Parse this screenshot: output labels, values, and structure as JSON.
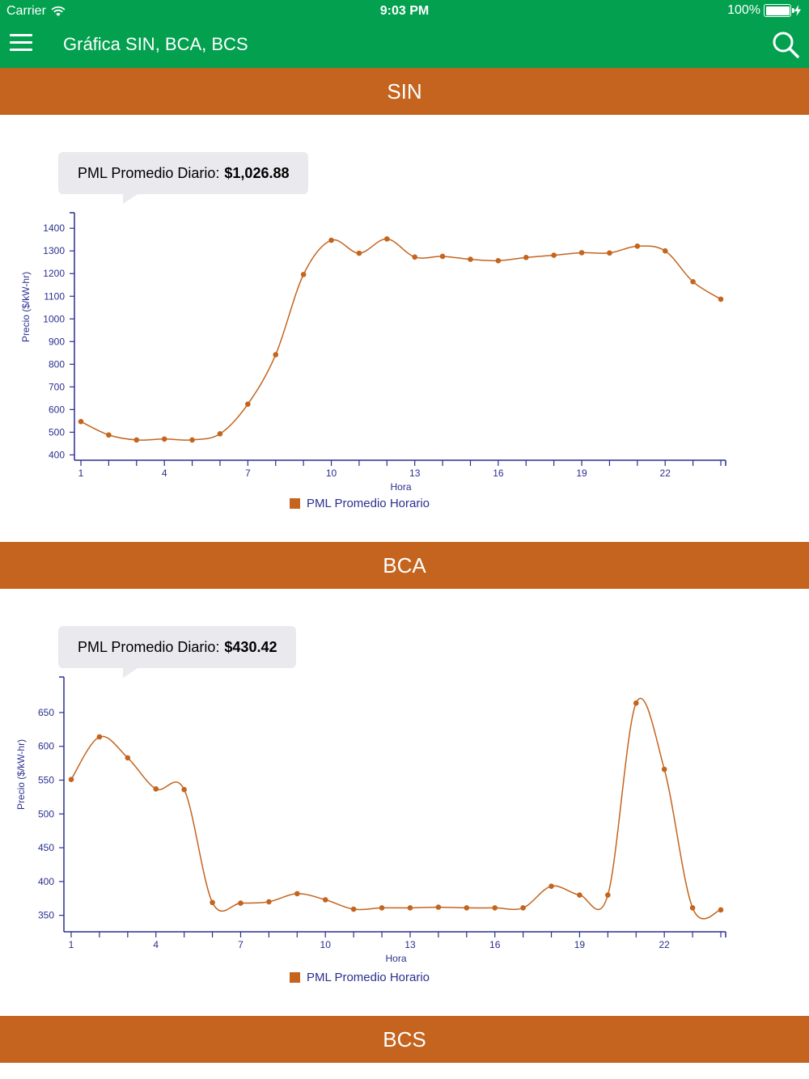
{
  "status_bar": {
    "carrier": "Carrier",
    "time": "9:03 PM",
    "battery": "100%"
  },
  "nav": {
    "title": "Gráfica SIN, BCA, BCS",
    "menu_icon": "hamburger-menu-icon",
    "search_icon": "search-icon"
  },
  "colors": {
    "nav_green": "#02a04f",
    "section_orange": "#c4641f",
    "axis_blue": "#2a2f8f",
    "line": "#c4641f"
  },
  "sections": [
    {
      "title": "SIN",
      "tooltip_label": "PML Promedio Diario:",
      "tooltip_value": "$1,026.88",
      "legend": "PML Promedio Horario"
    },
    {
      "title": "BCA",
      "tooltip_label": "PML Promedio Diario:",
      "tooltip_value": "$430.42",
      "legend": "PML Promedio Horario"
    },
    {
      "title": "BCS"
    }
  ],
  "chart_data": [
    {
      "type": "line",
      "title": "",
      "xlabel": "Hora",
      "ylabel": "Precio ($/kW-hr)",
      "x": [
        1,
        2,
        3,
        4,
        5,
        6,
        7,
        8,
        9,
        10,
        11,
        12,
        13,
        14,
        15,
        16,
        17,
        18,
        19,
        20,
        21,
        22,
        23,
        24
      ],
      "x_ticks": [
        1,
        4,
        7,
        10,
        13,
        16,
        19,
        22
      ],
      "y_ticks": [
        400,
        500,
        600,
        700,
        800,
        900,
        1000,
        1100,
        1200,
        1300,
        1400
      ],
      "ylim": [
        380,
        1440
      ],
      "series": [
        {
          "name": "PML Promedio Horario",
          "values": [
            547,
            488,
            466,
            470,
            466,
            493,
            624,
            842,
            1196,
            1347,
            1290,
            1353,
            1273,
            1276,
            1263,
            1257,
            1271,
            1281,
            1292,
            1291,
            1321,
            1300,
            1164,
            1087
          ]
        }
      ],
      "legend_position": "bottom"
    },
    {
      "type": "line",
      "title": "",
      "xlabel": "Hora",
      "ylabel": "Precio ($/kW-hr)",
      "x": [
        1,
        2,
        3,
        4,
        5,
        6,
        7,
        8,
        9,
        10,
        11,
        12,
        13,
        14,
        15,
        16,
        17,
        18,
        19,
        20,
        21,
        22,
        23,
        24
      ],
      "x_ticks": [
        1,
        4,
        7,
        10,
        13,
        16,
        19,
        22
      ],
      "y_ticks": [
        350,
        400,
        450,
        500,
        550,
        600,
        650
      ],
      "ylim": [
        328,
        693
      ],
      "series": [
        {
          "name": "PML Promedio Horario",
          "values": [
            551,
            614,
            583,
            537,
            536,
            369,
            368,
            370,
            382,
            373,
            359,
            361,
            361,
            362,
            361,
            361,
            361,
            393,
            380,
            380,
            664,
            566,
            361,
            358
          ]
        }
      ],
      "legend_position": "bottom"
    }
  ]
}
